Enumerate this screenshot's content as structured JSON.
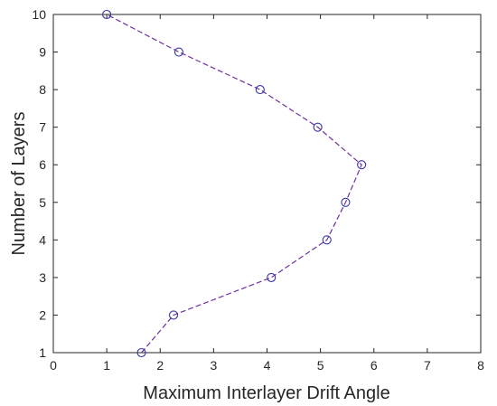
{
  "chart_data": {
    "type": "line",
    "title": "",
    "xlabel": "Maximum Interlayer Drift Angle",
    "ylabel": "Number of Layers",
    "xlim": [
      0,
      8
    ],
    "ylim": [
      1,
      10
    ],
    "xticks": [
      "0",
      "1",
      "2",
      "3",
      "4",
      "5",
      "6",
      "7",
      "8"
    ],
    "yticks": [
      "1",
      "2",
      "3",
      "4",
      "5",
      "6",
      "7",
      "8",
      "9",
      "10"
    ],
    "grid": false,
    "legend": "none",
    "series": [
      {
        "x": [
          1.65,
          2.25,
          4.08,
          5.12,
          5.47,
          5.77,
          4.95,
          3.87,
          2.35,
          1.0
        ],
        "y": [
          1,
          2,
          3,
          4,
          5,
          6,
          7,
          8,
          9,
          10
        ],
        "color": "#7030A0",
        "marker": "circle",
        "marker_color": "#3333AA",
        "line_style": "dashed"
      }
    ]
  }
}
